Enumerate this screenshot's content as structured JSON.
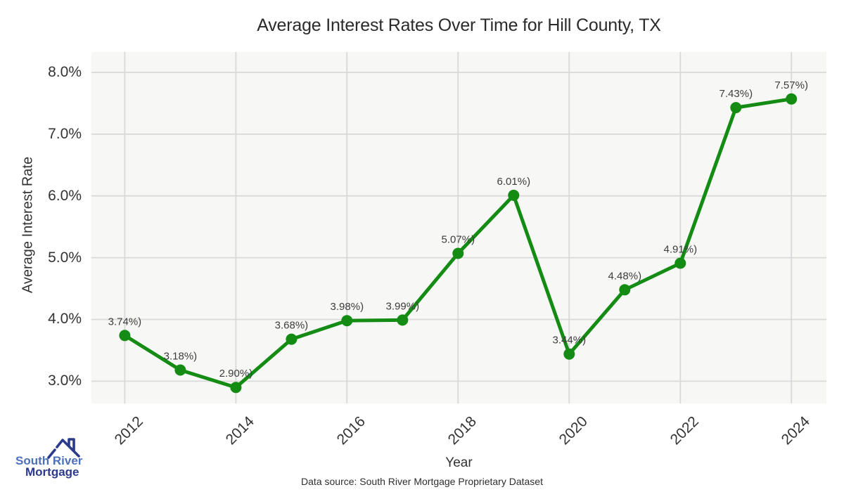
{
  "chart_data": {
    "type": "line",
    "title": "Average Interest Rates Over Time for Hill County, TX",
    "xlabel": "Year",
    "ylabel": "Average Interest Rate",
    "x": [
      2012,
      2013,
      2014,
      2015,
      2016,
      2017,
      2018,
      2019,
      2020,
      2021,
      2022,
      2023,
      2024
    ],
    "values": [
      3.74,
      3.18,
      2.9,
      3.68,
      3.98,
      3.99,
      5.07,
      6.01,
      3.44,
      4.48,
      4.91,
      7.43,
      7.57
    ],
    "point_labels": [
      "3.74%)",
      "3.18%)",
      "2.90%)",
      "3.68%)",
      "3.98%)",
      "3.99%)",
      "5.07%)",
      "6.01%)",
      "3.44%)",
      "4.48%)",
      "4.91%)",
      "7.43%)",
      "7.57%)"
    ],
    "x_ticks": [
      2012,
      2014,
      2016,
      2018,
      2020,
      2022,
      2024
    ],
    "y_tick_labels": [
      "8.0%",
      "7.0%",
      "6.0%",
      "5.0%",
      "4.0%",
      "3.0%"
    ],
    "y_tick_values": [
      8.0,
      7.0,
      6.0,
      5.0,
      4.0,
      3.0
    ],
    "xlim": [
      2011.4,
      2024.63
    ],
    "ylim": [
      2.64,
      8.33
    ],
    "grid": true,
    "legend": "none",
    "line_color": "#148c14",
    "marker_color": "#148c14",
    "label_color": "#3d3d3d",
    "plot_bg": "#f7f7f6",
    "grid_color": "#d9d9d9"
  },
  "footer": {
    "source": "Data source: South River Mortgage Proprietary Dataset"
  },
  "logo": {
    "line1": "South River",
    "line2": "Mortgage",
    "line1_color": "#4c70ba",
    "line2_color": "#2c3a8c",
    "roof_color": "#2c3a8c"
  }
}
